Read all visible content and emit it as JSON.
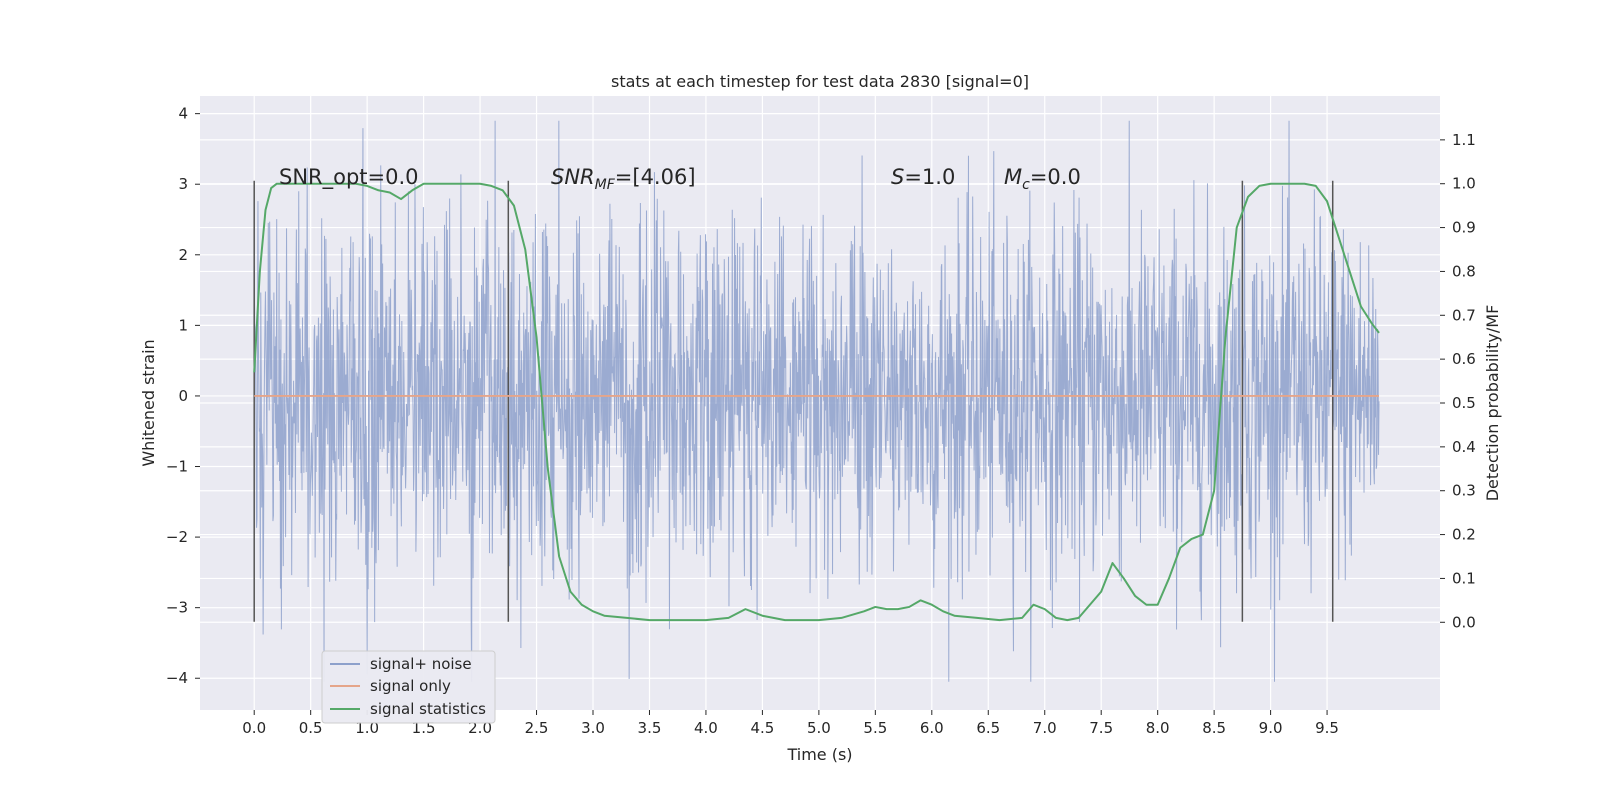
{
  "chart_data": {
    "type": "line",
    "title": "stats at each timestep for test data 2830 [signal=0]",
    "xlabel": "Time (s)",
    "ylabel": "Whitened strain",
    "ylabel_right": "Detection probability/MF",
    "xlim": [
      -0.48,
      10.5
    ],
    "ylim": [
      -4.45,
      4.25
    ],
    "ylim_right": [
      -0.2,
      1.2
    ],
    "x_ticks": [
      "0.0",
      "0.5",
      "1.0",
      "1.5",
      "2.0",
      "2.5",
      "3.0",
      "3.5",
      "4.0",
      "4.5",
      "5.0",
      "5.5",
      "6.0",
      "6.5",
      "7.0",
      "7.5",
      "8.0",
      "8.5",
      "9.0",
      "9.5"
    ],
    "y_ticks": [
      "4",
      "3",
      "2",
      "1",
      "0",
      "−1",
      "−2",
      "−3",
      "−4"
    ],
    "y_ticks_right": [
      "1.1",
      "1.0",
      "0.9",
      "0.8",
      "0.7",
      "0.6",
      "0.5",
      "0.4",
      "0.3",
      "0.2",
      "0.1",
      "0.0"
    ],
    "grid": true,
    "legend_placement": "lower-left",
    "annotations": {
      "snr_opt": "SNR_opt=0.0",
      "snr_mf_name": "SNR",
      "snr_mf_sub": "MF",
      "snr_mf_value": "=[4.06]",
      "s_name": "S",
      "s_value": "=1.0",
      "mc_name": "M",
      "mc_sub": "c",
      "mc_value": "=0.0"
    },
    "vertical_lines_x": [
      0.0,
      2.25,
      8.75,
      9.55
    ],
    "vertical_lines_ylim": [
      -3.2,
      3.05
    ],
    "series": [
      {
        "name": "signal+ noise",
        "color": "#8da0cb",
        "x_range": [
          0.0,
          9.96
        ],
        "envelope_typical": 1.25,
        "envelope_max": [
          -4.05,
          3.9
        ]
      },
      {
        "name": "signal only",
        "color": "#e5a58a",
        "x": [
          0.0,
          9.96
        ],
        "y": [
          0.0,
          0.0
        ]
      },
      {
        "name": "signal statistics",
        "color": "#55a868",
        "axis": "right",
        "x": [
          0.0,
          0.05,
          0.1,
          0.15,
          0.2,
          0.3,
          0.5,
          0.7,
          0.9,
          1.0,
          1.1,
          1.2,
          1.3,
          1.4,
          1.5,
          1.6,
          1.8,
          2.0,
          2.1,
          2.2,
          2.3,
          2.4,
          2.5,
          2.6,
          2.7,
          2.8,
          2.9,
          3.0,
          3.1,
          3.3,
          3.5,
          3.8,
          4.0,
          4.2,
          4.35,
          4.5,
          4.7,
          5.0,
          5.2,
          5.4,
          5.5,
          5.6,
          5.7,
          5.8,
          5.9,
          6.0,
          6.1,
          6.2,
          6.4,
          6.6,
          6.8,
          6.9,
          7.0,
          7.1,
          7.2,
          7.3,
          7.4,
          7.5,
          7.6,
          7.7,
          7.8,
          7.9,
          8.0,
          8.1,
          8.2,
          8.3,
          8.4,
          8.5,
          8.6,
          8.7,
          8.8,
          8.9,
          9.0,
          9.1,
          9.2,
          9.3,
          9.4,
          9.5,
          9.6,
          9.7,
          9.8,
          9.9,
          9.96
        ],
        "y": [
          0.57,
          0.8,
          0.94,
          0.99,
          1.0,
          1.0,
          1.0,
          1.0,
          1.0,
          0.995,
          0.985,
          0.98,
          0.965,
          0.985,
          1.0,
          1.0,
          1.0,
          1.0,
          0.995,
          0.985,
          0.95,
          0.85,
          0.65,
          0.35,
          0.15,
          0.07,
          0.04,
          0.025,
          0.015,
          0.01,
          0.005,
          0.005,
          0.005,
          0.01,
          0.03,
          0.015,
          0.005,
          0.005,
          0.01,
          0.025,
          0.035,
          0.03,
          0.03,
          0.035,
          0.05,
          0.04,
          0.025,
          0.015,
          0.01,
          0.005,
          0.01,
          0.04,
          0.03,
          0.01,
          0.005,
          0.01,
          0.04,
          0.07,
          0.135,
          0.1,
          0.06,
          0.04,
          0.04,
          0.1,
          0.17,
          0.19,
          0.2,
          0.3,
          0.65,
          0.9,
          0.97,
          0.995,
          1.0,
          1.0,
          1.0,
          1.0,
          0.995,
          0.96,
          0.88,
          0.8,
          0.72,
          0.68,
          0.66
        ]
      }
    ]
  }
}
